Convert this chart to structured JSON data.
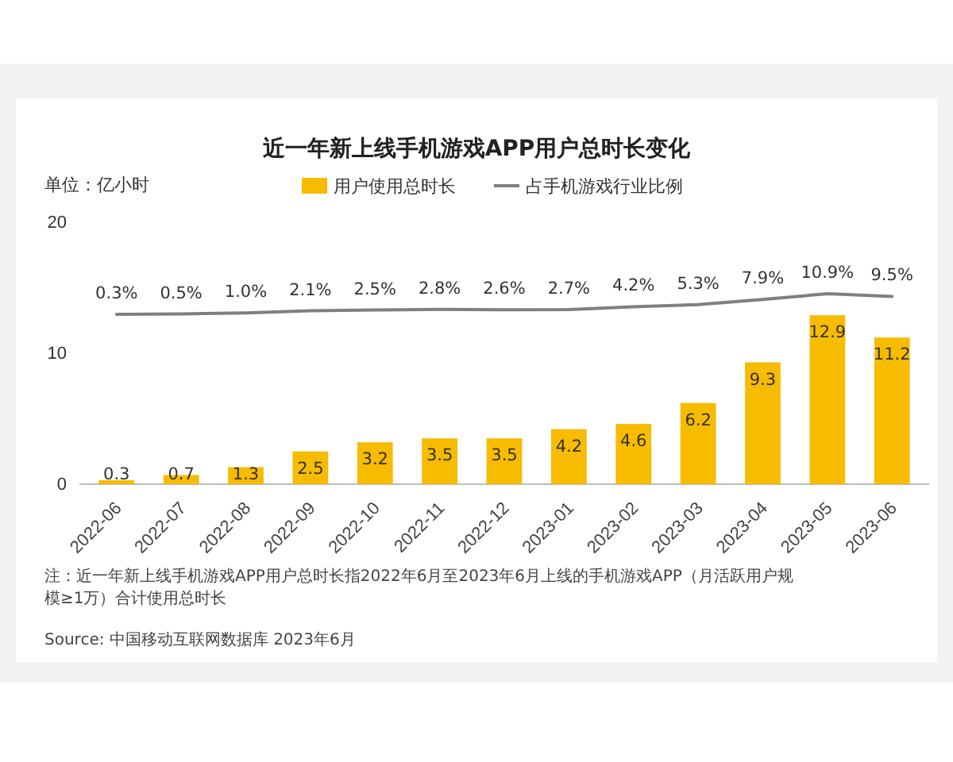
{
  "chart_data": {
    "type": "bar",
    "title": "近一年新上线手机游戏APP用户总时长变化",
    "ylabel": "单位：亿小时",
    "categories": [
      "2022-06",
      "2022-07",
      "2022-08",
      "2022-09",
      "2022-10",
      "2022-11",
      "2022-12",
      "2023-01",
      "2023-02",
      "2023-03",
      "2023-04",
      "2023-05",
      "2023-06"
    ],
    "series": [
      {
        "name": "用户使用总时长",
        "color": "#f7bb00",
        "values": [
          0.3,
          0.7,
          1.3,
          2.5,
          3.2,
          3.5,
          3.5,
          4.2,
          4.6,
          6.2,
          9.3,
          12.9,
          11.2
        ],
        "value_labels": [
          "0.3",
          "0.7",
          "1.3",
          "2.5",
          "3.2",
          "3.5",
          "3.5",
          "4.2",
          "4.6",
          "6.2",
          "9.3",
          "12.9",
          "11.2"
        ]
      },
      {
        "name": "占手机游戏行业比例",
        "type": "line",
        "axis": "y2",
        "color": "#7f7f7f",
        "values": [
          0.3,
          0.5,
          1.0,
          2.1,
          2.5,
          2.8,
          2.6,
          2.7,
          4.2,
          5.3,
          7.9,
          10.9,
          9.5
        ],
        "value_labels": [
          "0.3%",
          "0.5%",
          "1.0%",
          "2.1%",
          "2.5%",
          "2.8%",
          "2.6%",
          "2.7%",
          "4.2%",
          "5.3%",
          "7.9%",
          "10.9%",
          "9.5%"
        ]
      }
    ],
    "ylim": [
      0,
      20
    ],
    "yticks": [
      0,
      10,
      20
    ],
    "tick_labels": "xy",
    "legend": "top",
    "marker": "none",
    "line_style": "solid",
    "annotations": [
      "注：近一年新上线手机游戏APP用户总时长指2022年6月至2023年6月上线的手机游戏APP（月活跃用户规模≥1万）合计使用总时长",
      "Source: 中国移动互联网数据库 2023年6月"
    ]
  }
}
